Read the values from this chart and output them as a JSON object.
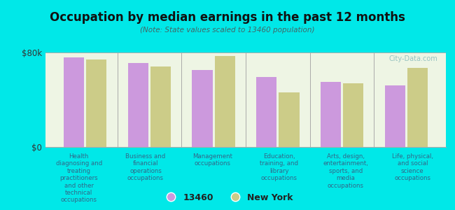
{
  "title": "Occupation by median earnings in the past 12 months",
  "subtitle": "(Note: State values scaled to 13460 population)",
  "background_color": "#00e8e8",
  "plot_bg_color": "#eef5e4",
  "categories": [
    "Health\ndiagnosing and\ntreating\npractitioners\nand other\ntechnical\noccupations",
    "Business and\nfinancial\noperations\noccupations",
    "Management\noccupations",
    "Education,\ntraining, and\nlibrary\noccupations",
    "Arts, design,\nentertainment,\nsports, and\nmedia\noccupations",
    "Life, physical,\nand social\nscience\noccupations"
  ],
  "values_13460": [
    76000,
    71000,
    65000,
    59000,
    55000,
    52000
  ],
  "values_ny": [
    74000,
    68000,
    77000,
    46000,
    54000,
    67000
  ],
  "color_13460": "#cc99dd",
  "color_ny": "#cccc88",
  "ylim": [
    0,
    80000
  ],
  "yticks": [
    0,
    80000
  ],
  "ytick_labels": [
    "$0",
    "$80k"
  ],
  "legend_13460": "13460",
  "legend_ny": "New York",
  "watermark": "City-Data.com",
  "title_color": "#111111",
  "subtitle_color": "#446666",
  "label_color": "#336688",
  "ytick_color": "#333333",
  "separator_color": "#aaaaaa",
  "watermark_color": "#88bbbb"
}
